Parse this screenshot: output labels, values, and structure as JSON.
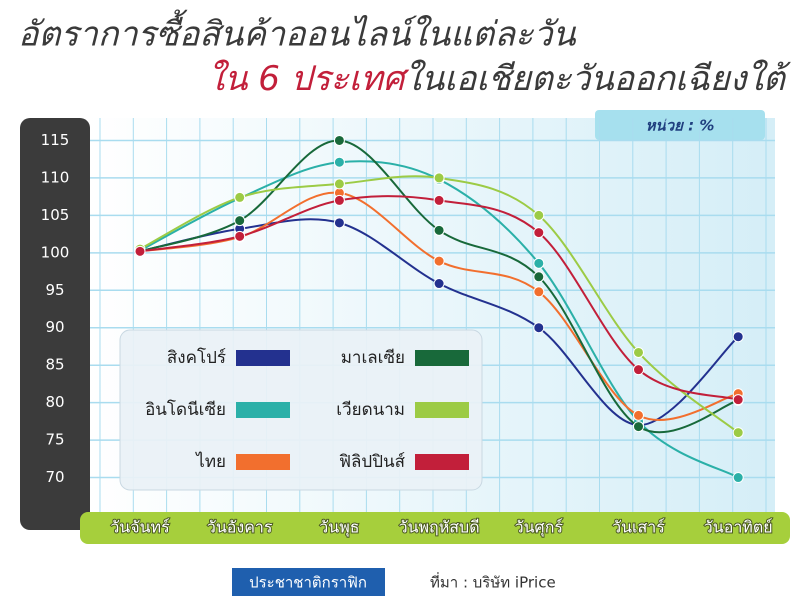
{
  "chart_data": {
    "type": "line",
    "title": "อัตราการซื้อสินค้าออนไลน์ในแต่ละวัน",
    "subtitle_highlight": "ใน 6 ประเทศ",
    "subtitle": "ในเอเชียตะวันออกเฉียงใต้",
    "unit_label": "หน่วย : %",
    "categories": [
      "วันจันทร์",
      "วันอังคาร",
      "วันพุธ",
      "วันพฤหัสบดี",
      "วันศุกร์",
      "วันเสาร์",
      "วันอาทิตย์"
    ],
    "series": [
      {
        "name": "สิงคโปร์",
        "color": "#23318f",
        "values": [
          100.2,
          103.2,
          104,
          95.9,
          90,
          77,
          88.8
        ]
      },
      {
        "name": "อินโดนีเซีย",
        "color": "#2bb0a8",
        "values": [
          100.3,
          107.3,
          112.1,
          109.8,
          98.6,
          77.5,
          70
        ]
      },
      {
        "name": "ไทย",
        "color": "#f26f2e",
        "values": [
          100.2,
          102.1,
          108,
          98.9,
          94.8,
          78.3,
          81.2
        ]
      },
      {
        "name": "มาเลเซีย",
        "color": "#18693a",
        "values": [
          100.2,
          104.3,
          115,
          103,
          96.8,
          76.8,
          80.3
        ]
      },
      {
        "name": "เวียดนาม",
        "color": "#9ccb45",
        "values": [
          100.5,
          107.4,
          109.2,
          110,
          105,
          86.7,
          76
        ]
      },
      {
        "name": "ฟิลิปปินส์",
        "color": "#c21f3a",
        "values": [
          100.2,
          102.2,
          107,
          107,
          102.7,
          84.4,
          80.4
        ]
      }
    ],
    "ylim": [
      65,
      118
    ],
    "yticks": [
      70,
      75,
      80,
      85,
      90,
      95,
      100,
      105,
      110,
      115
    ],
    "grid": true,
    "brand": "ประชาชาติกราฟิก",
    "source": "ที่มา : บริษัท iPrice"
  }
}
